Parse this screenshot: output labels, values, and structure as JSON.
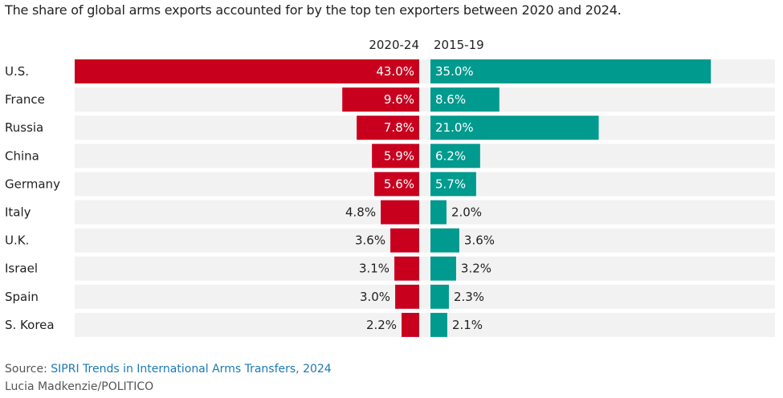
{
  "title": "The share of global arms exports accounted for by the top ten exporters between 2020 and 2024.",
  "chart_data": {
    "type": "bar",
    "orientation": "horizontal",
    "categories": [
      "U.S.",
      "France",
      "Russia",
      "China",
      "Germany",
      "Italy",
      "U.K.",
      "Israel",
      "Spain",
      "S. Korea"
    ],
    "series": [
      {
        "name": "2020-24",
        "values": [
          43.0,
          9.6,
          7.8,
          5.9,
          5.6,
          4.8,
          3.6,
          3.1,
          3.0,
          2.2
        ],
        "labels": [
          "43.0%",
          "9.6%",
          "7.8%",
          "5.9%",
          "5.6%",
          "4.8%",
          "3.6%",
          "3.1%",
          "3.0%",
          "2.2%"
        ],
        "color": "#c8001e"
      },
      {
        "name": "2015-19",
        "values": [
          35.0,
          8.6,
          21.0,
          6.2,
          5.7,
          2.0,
          3.6,
          3.2,
          2.3,
          2.1
        ],
        "labels": [
          "35.0%",
          "8.6%",
          "21.0%",
          "6.2%",
          "5.7%",
          "2.0%",
          "3.6%",
          "3.2%",
          "2.3%",
          "2.1%"
        ],
        "color": "#009a8e"
      }
    ],
    "unit": "%",
    "row_background": "#f2f2f2"
  },
  "footer": {
    "source_prefix": "Source: ",
    "source_link": "SIPRI Trends in International Arms Transfers, 2024",
    "credit": "Lucia Madkenzie/POLITICO"
  }
}
